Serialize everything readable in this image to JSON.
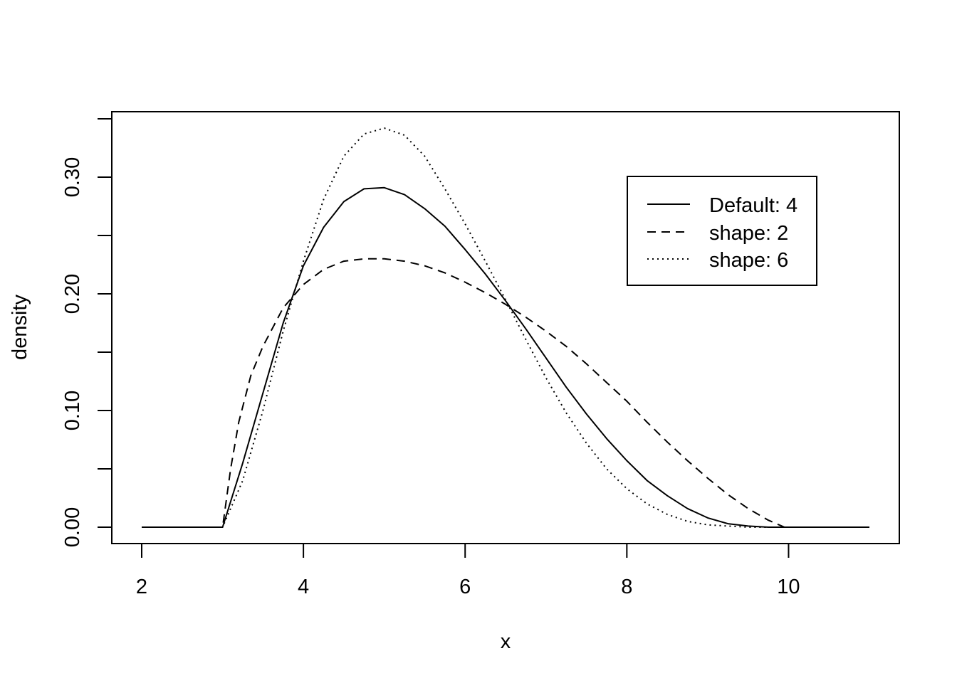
{
  "chart_data": {
    "type": "line",
    "title": "",
    "xlabel": "x",
    "ylabel": "density",
    "xlim": [
      2,
      11
    ],
    "ylim": [
      0,
      0.35
    ],
    "x_ticks": [
      "2",
      "4",
      "6",
      "8",
      "10"
    ],
    "y_ticks": [
      "0.00",
      "0.10",
      "0.20",
      "0.30"
    ],
    "y_minor_ticks": [
      0.05,
      0.15,
      0.25,
      0.35
    ],
    "grid": false,
    "legend_position": "top-right",
    "series": [
      {
        "name": "Default: 4",
        "line_style": "solid",
        "x": [
          2,
          3,
          3.25,
          3.5,
          3.75,
          4,
          4.25,
          4.5,
          4.75,
          5,
          5.25,
          5.5,
          5.75,
          6,
          6.25,
          6.5,
          6.75,
          7,
          7.25,
          7.5,
          7.75,
          8,
          8.25,
          8.5,
          8.75,
          9,
          9.25,
          9.5,
          9.75,
          10,
          11
        ],
        "y": [
          0,
          0,
          0.055,
          0.115,
          0.175,
          0.224,
          0.257,
          0.279,
          0.29,
          0.291,
          0.285,
          0.273,
          0.258,
          0.238,
          0.217,
          0.194,
          0.17,
          0.145,
          0.12,
          0.097,
          0.076,
          0.057,
          0.04,
          0.027,
          0.016,
          0.008,
          0.003,
          0.001,
          0,
          0,
          0
        ]
      },
      {
        "name": "shape: 2",
        "line_style": "dashed",
        "x": [
          2,
          3,
          3.1,
          3.2,
          3.35,
          3.5,
          3.75,
          4,
          4.25,
          4.5,
          4.75,
          5,
          5.25,
          5.5,
          5.75,
          6,
          6.25,
          6.5,
          6.75,
          7,
          7.25,
          7.5,
          7.75,
          8,
          8.25,
          8.5,
          8.75,
          9,
          9.25,
          9.5,
          9.75,
          9.95,
          10,
          11
        ],
        "y": [
          0,
          0,
          0.05,
          0.09,
          0.13,
          0.155,
          0.188,
          0.208,
          0.221,
          0.228,
          0.23,
          0.23,
          0.228,
          0.224,
          0.218,
          0.21,
          0.201,
          0.191,
          0.18,
          0.168,
          0.155,
          0.14,
          0.124,
          0.108,
          0.09,
          0.073,
          0.057,
          0.042,
          0.028,
          0.016,
          0.006,
          0,
          0,
          0
        ]
      },
      {
        "name": "shape: 6",
        "line_style": "dotted",
        "x": [
          2,
          3,
          3.25,
          3.5,
          3.75,
          4,
          4.25,
          4.5,
          4.75,
          5,
          5.25,
          5.5,
          5.75,
          6,
          6.25,
          6.5,
          6.75,
          7,
          7.25,
          7.5,
          7.75,
          8,
          8.25,
          8.5,
          8.75,
          9,
          9.25,
          9.5,
          9.75,
          10,
          11
        ],
        "y": [
          0,
          0,
          0.04,
          0.1,
          0.168,
          0.228,
          0.281,
          0.318,
          0.337,
          0.342,
          0.336,
          0.318,
          0.29,
          0.26,
          0.228,
          0.195,
          0.161,
          0.128,
          0.098,
          0.072,
          0.05,
          0.033,
          0.02,
          0.011,
          0.005,
          0.002,
          0.001,
          0,
          0,
          0,
          0
        ]
      }
    ]
  }
}
